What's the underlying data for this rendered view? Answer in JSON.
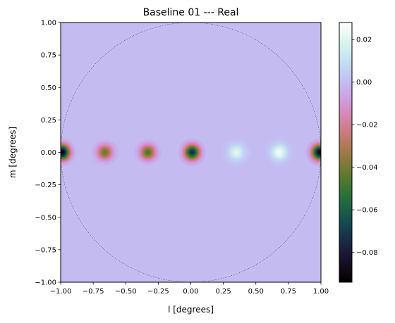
{
  "chart_data": {
    "type": "heatmap",
    "title": "Baseline 01 --- Real",
    "xlabel": "l [degrees]",
    "ylabel": "m [degrees]",
    "xlim": [
      -1.0,
      1.0
    ],
    "ylim": [
      -1.0,
      1.0
    ],
    "xticks": [
      "−1.00",
      "−0.75",
      "−0.50",
      "−0.25",
      "0.00",
      "0.25",
      "0.50",
      "0.75",
      "1.00"
    ],
    "yticks": [
      "1.00",
      "0.75",
      "0.50",
      "0.25",
      "0.00",
      "−0.25",
      "−0.50",
      "−0.75",
      "−1.00"
    ],
    "colorbar": {
      "colormap": "cubehelix",
      "range": [
        -0.094,
        0.028
      ],
      "ticks": [
        "0.02",
        "0.00",
        "−0.02",
        "−0.04",
        "−0.06",
        "−0.08"
      ]
    },
    "background_value": 0.0,
    "grid": false,
    "sources": [
      {
        "l": -0.99,
        "m": 0.0,
        "value": -0.094
      },
      {
        "l": -0.66,
        "m": 0.0,
        "value": -0.043
      },
      {
        "l": -0.33,
        "m": 0.0,
        "value": -0.048
      },
      {
        "l": 0.01,
        "m": 0.0,
        "value": -0.075
      },
      {
        "l": 0.35,
        "m": 0.0,
        "value": 0.021
      },
      {
        "l": 0.68,
        "m": 0.0,
        "value": 0.025
      },
      {
        "l": 0.99,
        "m": 0.0,
        "value": -0.09
      }
    ],
    "horizon_circle": {
      "center": [
        0,
        0
      ],
      "radius": 1.0,
      "style": "dotted"
    }
  }
}
